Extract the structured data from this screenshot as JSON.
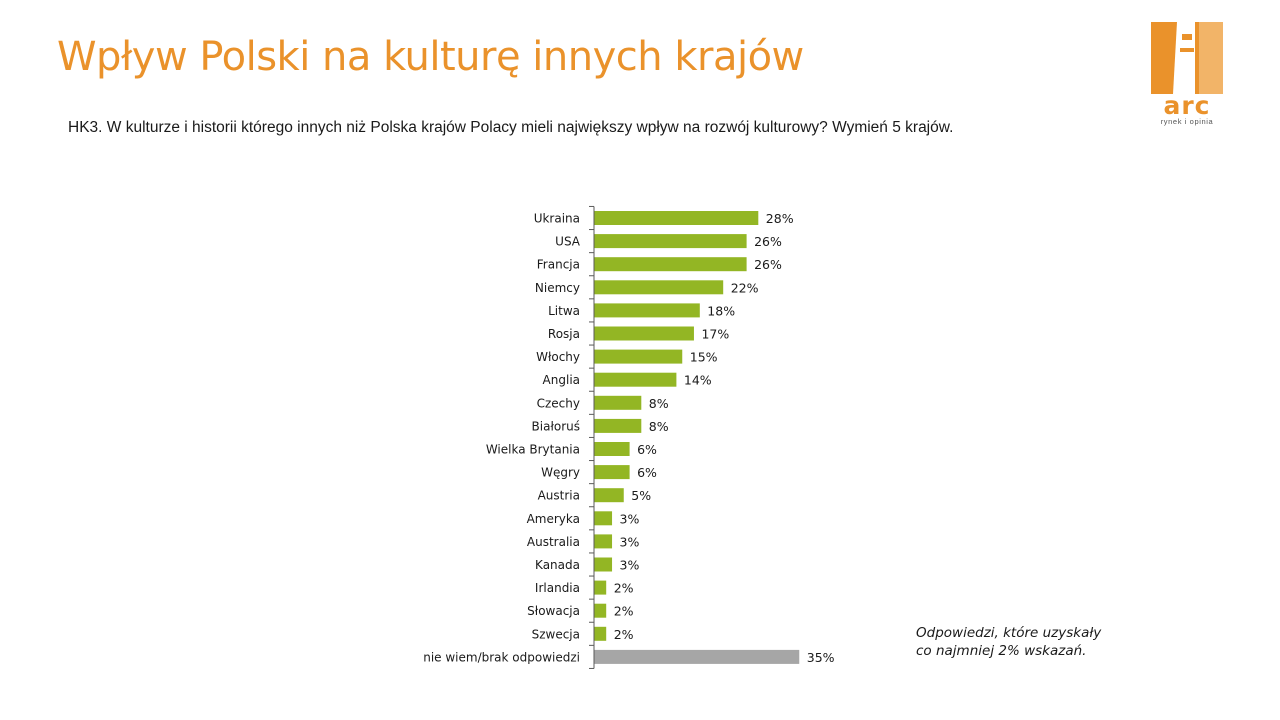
{
  "slide": {
    "title": "Wpływ Polski na kulturę innych krajów",
    "question": "HK3. W kulturze  i historii którego innych niż Polska krajów Polacy mieli największy wpływ na rozwój kulturowy? Wymień 5 krajów."
  },
  "logo": {
    "text": "arc",
    "subtext": "rynek i opinia",
    "color": "#ea922b"
  },
  "note": {
    "line1": "Odpowiedzi, które uzyskały",
    "line2": "co najmniej 2% wskazań."
  },
  "chart_data": {
    "type": "bar",
    "orientation": "horizontal",
    "categories": [
      "Ukraina",
      "USA",
      "Francja",
      "Niemcy",
      "Litwa",
      "Rosja",
      "Włochy",
      "Anglia",
      "Czechy",
      "Białoruś",
      "Wielka Brytania",
      "Węgry",
      "Austria",
      "Ameryka",
      "Australia",
      "Kanada",
      "Irlandia",
      "Słowacja",
      "Szwecja",
      "nie wiem/brak odpowiedzi"
    ],
    "values": [
      28,
      26,
      26,
      22,
      18,
      17,
      15,
      14,
      8,
      8,
      6,
      6,
      5,
      3,
      3,
      3,
      2,
      2,
      2,
      35
    ],
    "value_labels": [
      "28%",
      "26%",
      "26%",
      "22%",
      "18%",
      "17%",
      "15%",
      "14%",
      "8%",
      "8%",
      "6%",
      "6%",
      "5%",
      "3%",
      "3%",
      "3%",
      "2%",
      "2%",
      "2%",
      "35%"
    ],
    "bar_colors": [
      "#93b624",
      "#93b624",
      "#93b624",
      "#93b624",
      "#93b624",
      "#93b624",
      "#93b624",
      "#93b624",
      "#93b624",
      "#93b624",
      "#93b624",
      "#93b624",
      "#93b624",
      "#93b624",
      "#93b624",
      "#93b624",
      "#93b624",
      "#93b624",
      "#93b624",
      "#a6a6a6"
    ],
    "title": "",
    "xlabel": "",
    "ylabel": "",
    "xlim": [
      0,
      35
    ],
    "grid": false,
    "legend": "none"
  }
}
